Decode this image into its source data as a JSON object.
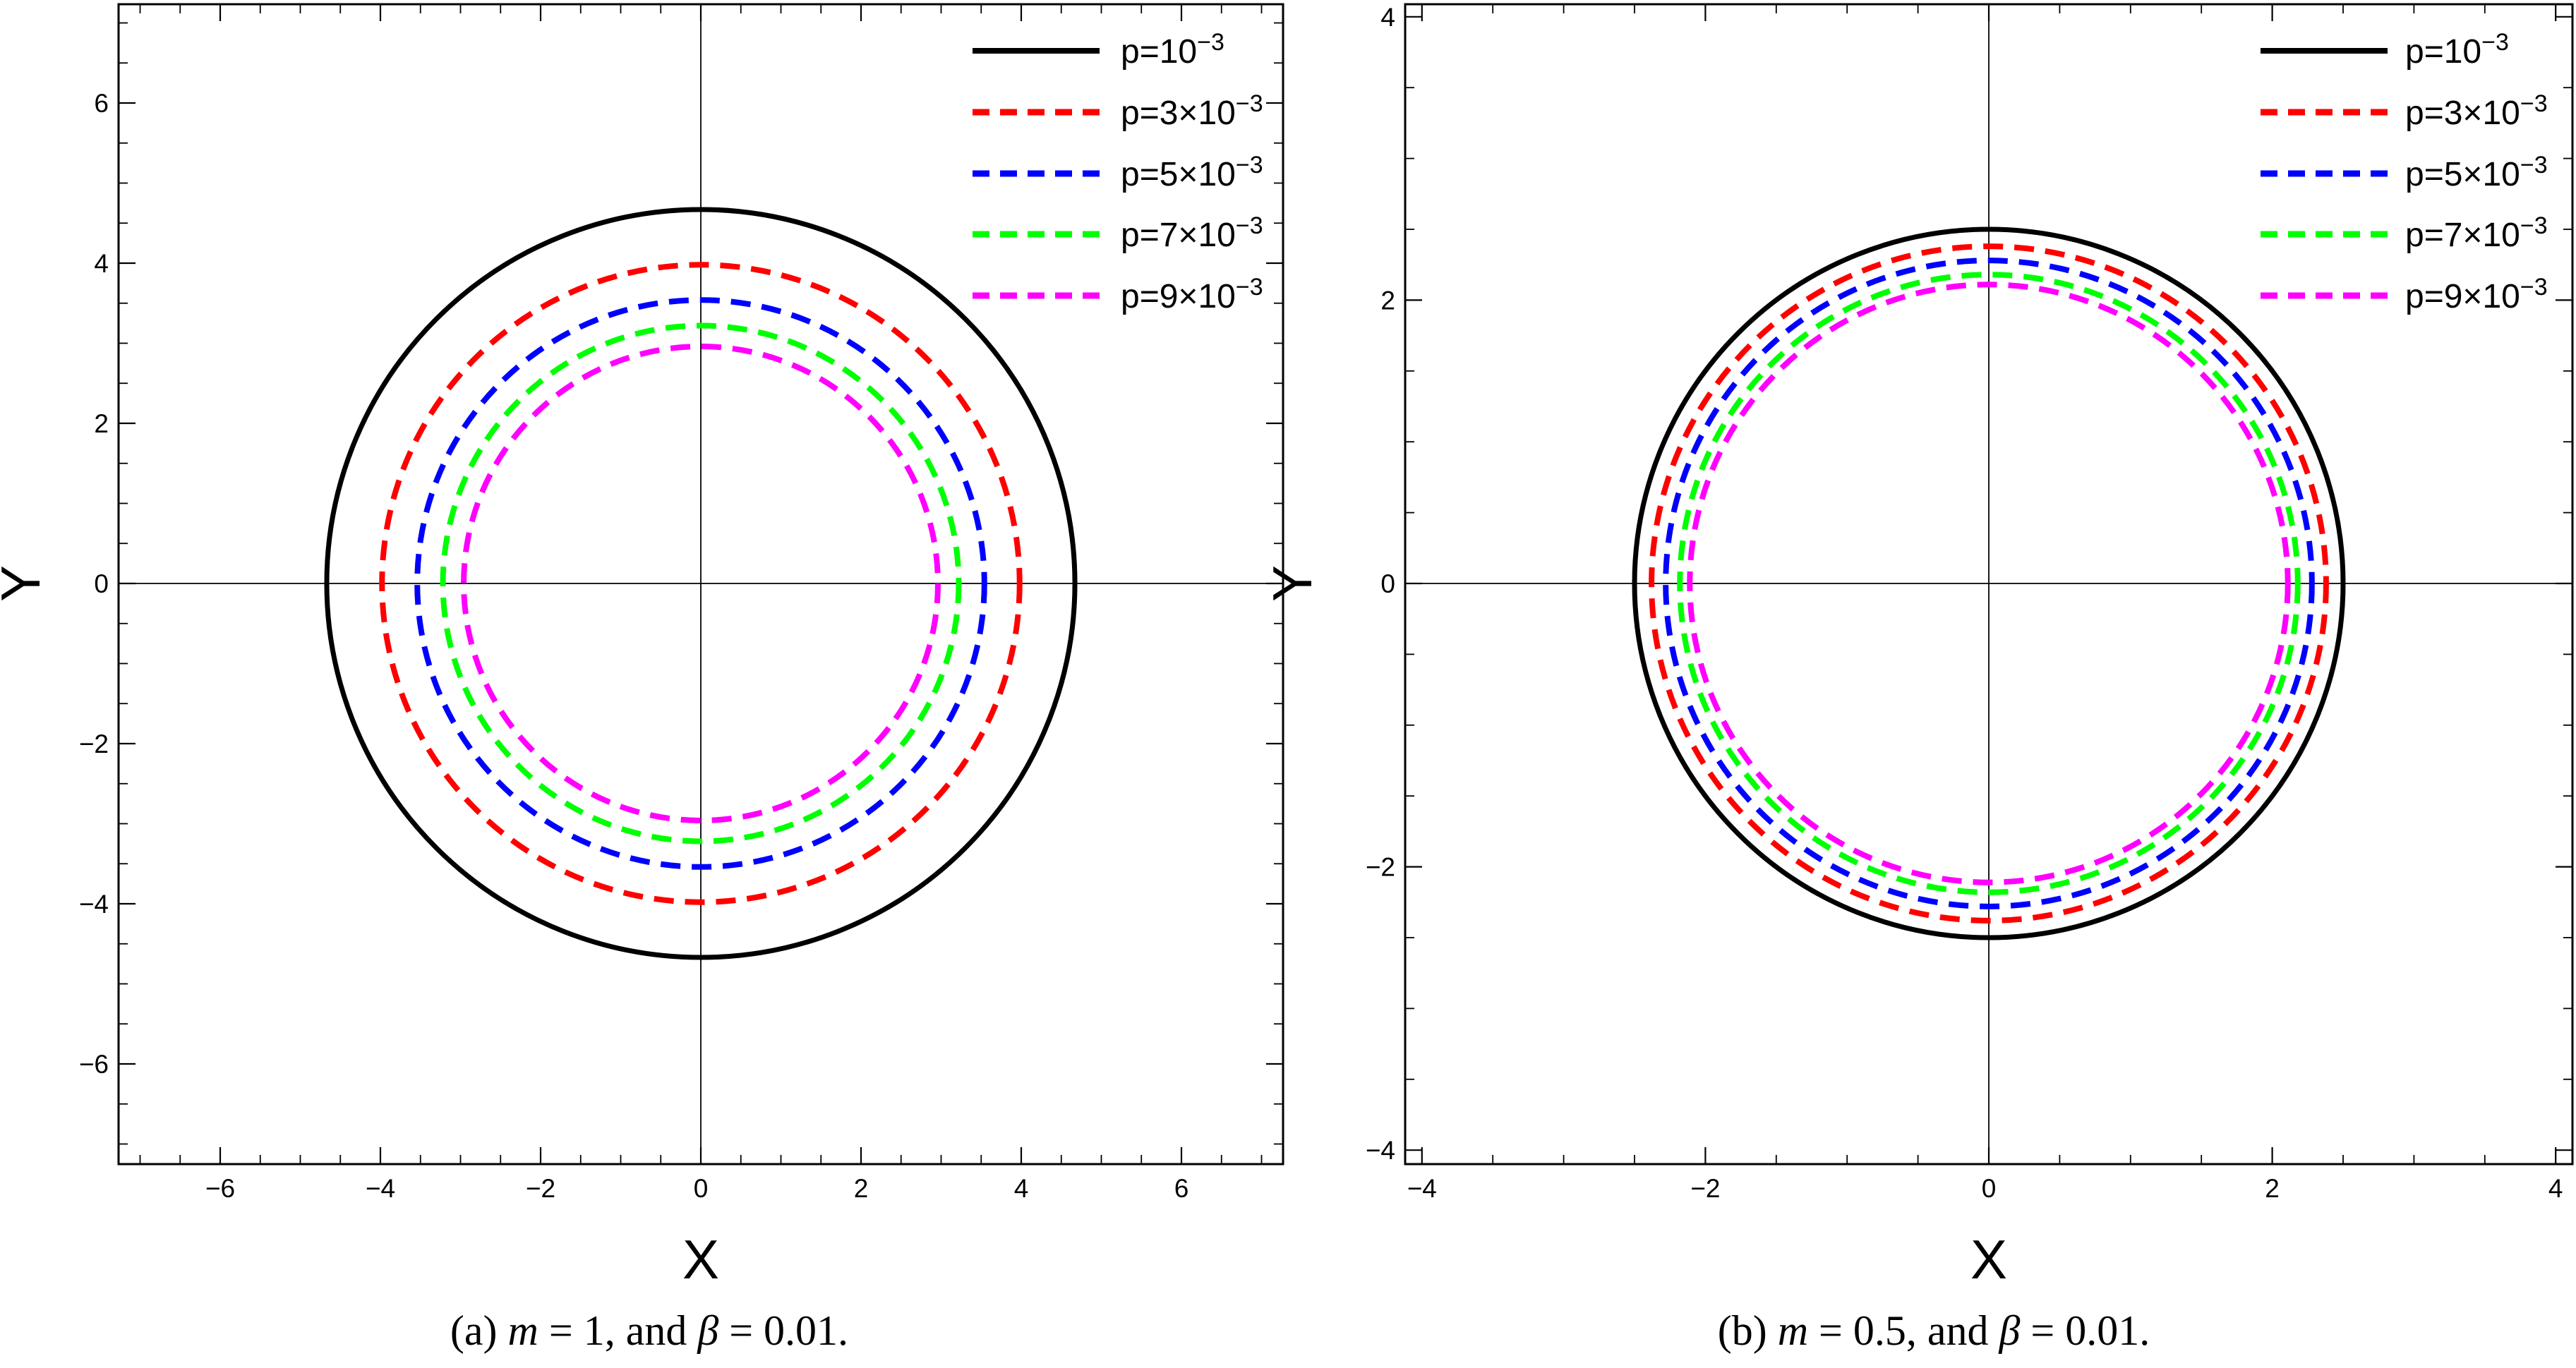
{
  "figure": {
    "background": "#FFFFFF",
    "text_color": "#000000"
  },
  "chart_data": [
    {
      "type": "line",
      "subtype": "concentric-shadow-circles",
      "panel": "a",
      "title": "",
      "xlabel": "X",
      "ylabel": "Y",
      "xlim": [
        -7.3,
        7.3
      ],
      "ylim": [
        -7.3,
        7.3
      ],
      "xticks": [
        -6,
        -4,
        -2,
        0,
        2,
        4,
        6
      ],
      "yticks": [
        -6,
        -4,
        -2,
        0,
        2,
        4,
        6
      ],
      "minor_tick_step": 0.5,
      "grid": false,
      "axes_cross_at_origin": true,
      "legend_position": "top-right",
      "series": [
        {
          "name": "p=10^-3",
          "legend_base": "p=10",
          "legend_exp": "−3",
          "color": "#000000",
          "line_style": "solid",
          "center": [
            0,
            0
          ],
          "radius": 4.67
        },
        {
          "name": "p=3×10^-3",
          "legend_base": "p=3×10",
          "legend_exp": "−3",
          "color": "#FF0000",
          "line_style": "dashed",
          "center": [
            0,
            0
          ],
          "radius": 3.98
        },
        {
          "name": "p=5×10^-3",
          "legend_base": "p=5×10",
          "legend_exp": "−3",
          "color": "#0000FF",
          "line_style": "dashed",
          "center": [
            0,
            0
          ],
          "radius": 3.54
        },
        {
          "name": "p=7×10^-3",
          "legend_base": "p=7×10",
          "legend_exp": "−3",
          "color": "#00FF00",
          "line_style": "dashed",
          "center": [
            0,
            0
          ],
          "radius": 3.22
        },
        {
          "name": "p=9×10^-3",
          "legend_base": "p=9×10",
          "legend_exp": "−3",
          "color": "#FF00FF",
          "line_style": "dashed",
          "center": [
            0,
            0
          ],
          "radius": 2.96
        }
      ],
      "caption": {
        "plain": "(a) m = 1, and β = 0.01.",
        "segments": [
          {
            "text": "(a) ",
            "italic": false
          },
          {
            "text": "m",
            "italic": true
          },
          {
            "text": " = 1, and ",
            "italic": false
          },
          {
            "text": "β",
            "italic": true
          },
          {
            "text": " = 0.01.",
            "italic": false
          }
        ]
      }
    },
    {
      "type": "line",
      "subtype": "concentric-shadow-circles",
      "panel": "b",
      "title": "",
      "xlabel": "X",
      "ylabel": "Y",
      "xlim": [
        -4.1,
        4.1
      ],
      "ylim": [
        -4.1,
        4.1
      ],
      "xticks": [
        -4,
        -2,
        0,
        2,
        4
      ],
      "yticks": [
        -4,
        -2,
        0,
        2,
        4
      ],
      "minor_tick_step": 0.5,
      "grid": false,
      "axes_cross_at_origin": true,
      "legend_position": "top-right",
      "series": [
        {
          "name": "p=10^-3",
          "legend_base": "p=10",
          "legend_exp": "−3",
          "color": "#000000",
          "line_style": "solid",
          "center": [
            0,
            0
          ],
          "radius": 2.5
        },
        {
          "name": "p=3×10^-3",
          "legend_base": "p=3×10",
          "legend_exp": "−3",
          "color": "#FF0000",
          "line_style": "dashed",
          "center": [
            0,
            0
          ],
          "radius": 2.38
        },
        {
          "name": "p=5×10^-3",
          "legend_base": "p=5×10",
          "legend_exp": "−3",
          "color": "#0000FF",
          "line_style": "dashed",
          "center": [
            0,
            0
          ],
          "radius": 2.28
        },
        {
          "name": "p=7×10^-3",
          "legend_base": "p=7×10",
          "legend_exp": "−3",
          "color": "#00FF00",
          "line_style": "dashed",
          "center": [
            0,
            0
          ],
          "radius": 2.18
        },
        {
          "name": "p=9×10^-3",
          "legend_base": "p=9×10",
          "legend_exp": "−3",
          "color": "#FF00FF",
          "line_style": "dashed",
          "center": [
            0,
            0
          ],
          "radius": 2.11
        }
      ],
      "caption": {
        "plain": "(b) m = 0.5, and β = 0.01.",
        "segments": [
          {
            "text": "(b) ",
            "italic": false
          },
          {
            "text": "m",
            "italic": true
          },
          {
            "text": " = 0.5, and ",
            "italic": false
          },
          {
            "text": "β",
            "italic": true
          },
          {
            "text": " = 0.01.",
            "italic": false
          }
        ]
      }
    }
  ]
}
